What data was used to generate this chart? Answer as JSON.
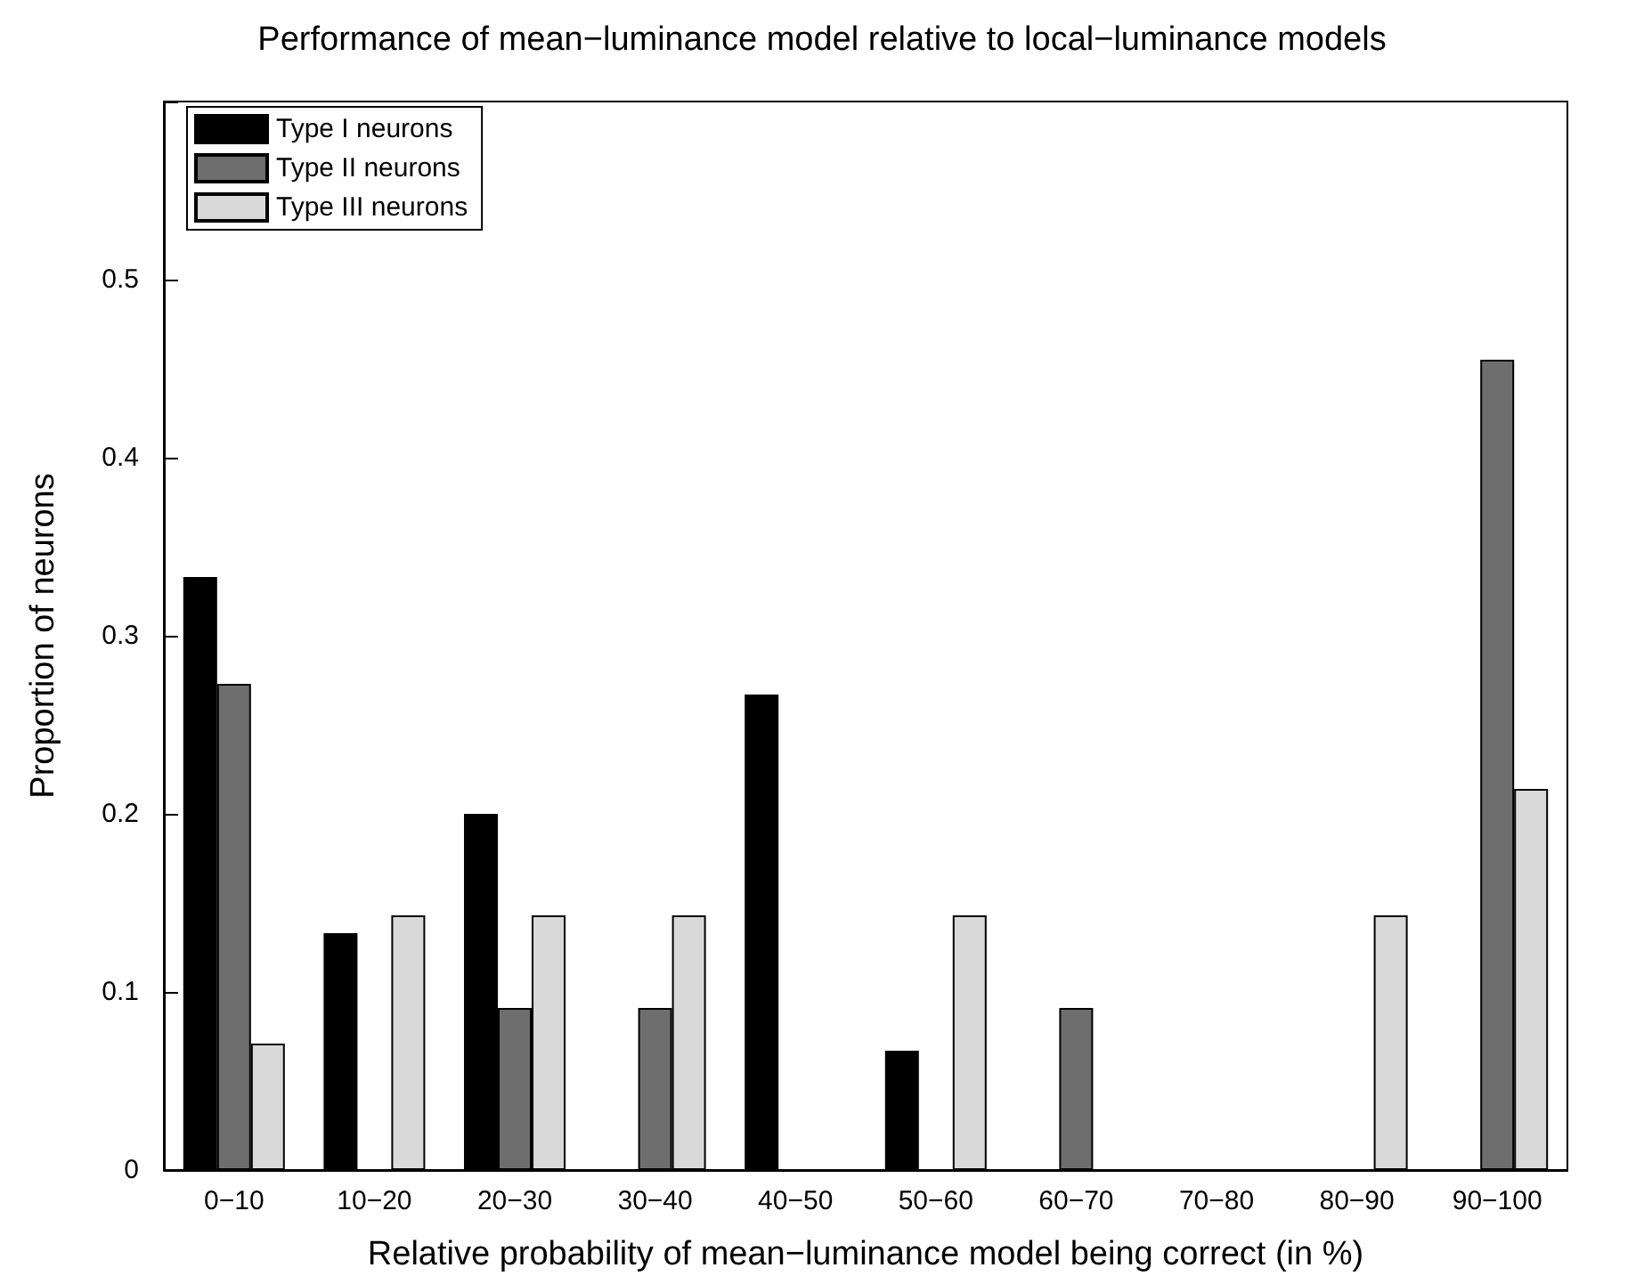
{
  "chart_data": {
    "type": "bar",
    "title": "Performance of mean−luminance model relative to local−luminance models",
    "xlabel": "Relative probability of mean−luminance model being correct (in %)",
    "ylabel": "Proportion of neurons",
    "categories": [
      "0−10",
      "10−20",
      "20−30",
      "30−40",
      "40−50",
      "50−60",
      "60−70",
      "70−80",
      "80−90",
      "90−100"
    ],
    "series": [
      {
        "name": "Type I neurons",
        "color": "#000000",
        "values": [
          0.333,
          0.133,
          0.2,
          0,
          0.267,
          0.067,
          0,
          0,
          0,
          0
        ]
      },
      {
        "name": "Type II neurons",
        "color": "#6e6e6e",
        "values": [
          0.273,
          0,
          0.091,
          0.091,
          0,
          0,
          0.091,
          0,
          0,
          0.455
        ]
      },
      {
        "name": "Type III neurons",
        "color": "#d9d9d9",
        "values": [
          0.071,
          0.143,
          0.143,
          0.143,
          0,
          0.143,
          0,
          0,
          0.143,
          0.214
        ]
      }
    ],
    "ylim": [
      0,
      0.6
    ],
    "yticks": [
      0,
      0.1,
      0.2,
      0.3,
      0.4,
      0.5,
      {
        "value": 0.6,
        "label": null
      }
    ],
    "grid": false,
    "legend": "top left"
  }
}
